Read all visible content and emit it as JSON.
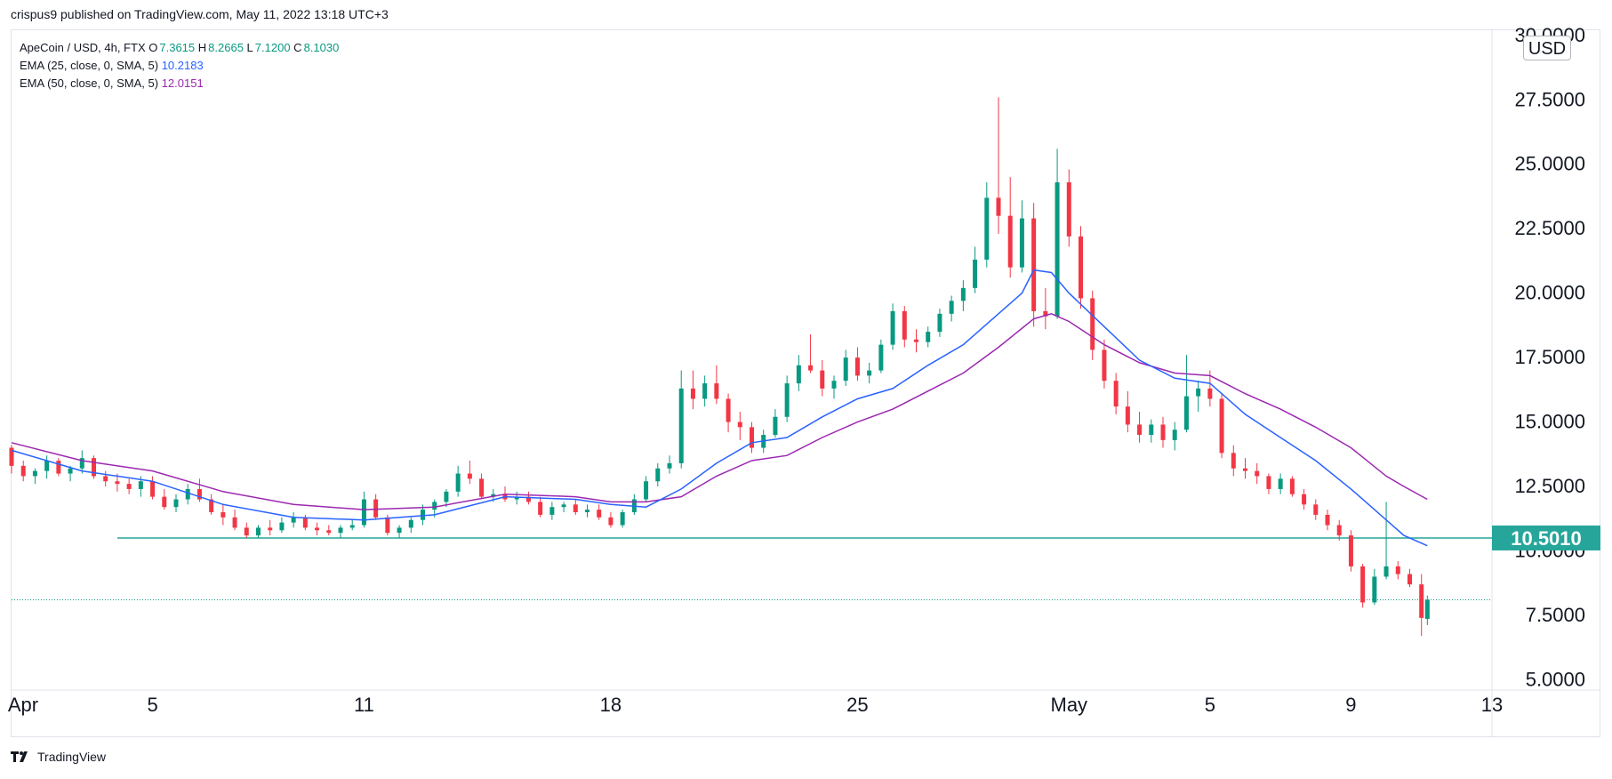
{
  "header": {
    "published_text": "crispus9 published on TradingView.com, May 11, 2022 13:18 UTC+3"
  },
  "legend": {
    "symbol": "ApeCoin / USD, 4h, FTX",
    "open_label": "O",
    "open_value": "7.3615",
    "high_label": "H",
    "high_value": "8.2665",
    "low_label": "L",
    "low_value": "7.1200",
    "close_label": "C",
    "close_value": "8.1030",
    "ema1_label": "EMA (25, close, 0, SMA, 5)",
    "ema1_value": "10.2183",
    "ema2_label": "EMA (50, close, 0, SMA, 5)",
    "ema2_value": "12.0151"
  },
  "footer": {
    "brand": "TradingView"
  },
  "colors": {
    "up": "#089981",
    "down": "#f23645",
    "ema25": "#2962ff",
    "ema50": "#9c27b0",
    "hline": "#26a69a",
    "grid": "#f0f3fa",
    "axis_text": "#131722"
  },
  "chart_data": {
    "type": "candlestick",
    "currency_label": "USD",
    "y_ticks": [
      "5.0000",
      "7.5000",
      "10.0000",
      "12.5000",
      "15.0000",
      "17.5000",
      "20.0000",
      "22.5000",
      "25.0000",
      "27.5000",
      "30.0000"
    ],
    "y_tick_values": [
      5,
      7.5,
      10,
      12.5,
      15,
      17.5,
      20,
      22.5,
      25,
      27.5,
      30
    ],
    "ylim": [
      4.6,
      30.2
    ],
    "x_ticks": [
      {
        "label": "Apr",
        "date": "2022-04-01"
      },
      {
        "label": "5",
        "date": "2022-04-05"
      },
      {
        "label": "11",
        "date": "2022-04-11"
      },
      {
        "label": "18",
        "date": "2022-04-18"
      },
      {
        "label": "25",
        "date": "2022-04-25"
      },
      {
        "label": "May",
        "date": "2022-05-01"
      },
      {
        "label": "5",
        "date": "2022-05-05"
      },
      {
        "label": "9",
        "date": "2022-05-09"
      },
      {
        "label": "13",
        "date": "2022-05-13"
      }
    ],
    "xlim": [
      "2022-04-01",
      "2022-05-13"
    ],
    "horizontal_line": {
      "value": 10.501,
      "label": "10.5010",
      "from_date": "2022-04-04"
    },
    "last_close": 8.103,
    "ema25": [
      [
        "2022-04-01",
        13.9
      ],
      [
        "2022-04-03",
        13.1
      ],
      [
        "2022-04-05",
        12.7
      ],
      [
        "2022-04-07",
        11.8
      ],
      [
        "2022-04-09",
        11.3
      ],
      [
        "2022-04-11",
        11.2
      ],
      [
        "2022-04-13",
        11.4
      ],
      [
        "2022-04-15",
        12.1
      ],
      [
        "2022-04-17",
        12.0
      ],
      [
        "2022-04-18",
        11.8
      ],
      [
        "2022-04-19",
        11.7
      ],
      [
        "2022-04-20",
        12.4
      ],
      [
        "2022-04-21",
        13.4
      ],
      [
        "2022-04-22",
        14.2
      ],
      [
        "2022-04-23",
        14.4
      ],
      [
        "2022-04-24",
        15.2
      ],
      [
        "2022-04-25",
        15.9
      ],
      [
        "2022-04-26",
        16.3
      ],
      [
        "2022-04-27",
        17.2
      ],
      [
        "2022-04-28",
        18.0
      ],
      [
        "2022-04-29",
        19.2
      ],
      [
        "2022-04-29T16",
        20.0
      ],
      [
        "2022-04-30",
        20.9
      ],
      [
        "2022-04-30T12",
        20.8
      ],
      [
        "2022-05-01",
        20.0
      ],
      [
        "2022-05-02",
        18.7
      ],
      [
        "2022-05-03",
        17.4
      ],
      [
        "2022-05-04",
        16.7
      ],
      [
        "2022-05-05",
        16.5
      ],
      [
        "2022-05-06",
        15.3
      ],
      [
        "2022-05-07",
        14.4
      ],
      [
        "2022-05-08",
        13.5
      ],
      [
        "2022-05-09",
        12.4
      ],
      [
        "2022-05-10",
        11.2
      ],
      [
        "2022-05-10T12",
        10.6
      ],
      [
        "2022-05-11T04",
        10.2
      ]
    ],
    "ema50": [
      [
        "2022-04-01",
        14.2
      ],
      [
        "2022-04-03",
        13.5
      ],
      [
        "2022-04-05",
        13.1
      ],
      [
        "2022-04-07",
        12.3
      ],
      [
        "2022-04-09",
        11.8
      ],
      [
        "2022-04-11",
        11.6
      ],
      [
        "2022-04-13",
        11.7
      ],
      [
        "2022-04-15",
        12.2
      ],
      [
        "2022-04-17",
        12.1
      ],
      [
        "2022-04-18",
        11.9
      ],
      [
        "2022-04-19",
        11.9
      ],
      [
        "2022-04-20",
        12.1
      ],
      [
        "2022-04-21",
        12.9
      ],
      [
        "2022-04-22",
        13.5
      ],
      [
        "2022-04-23",
        13.7
      ],
      [
        "2022-04-24",
        14.4
      ],
      [
        "2022-04-25",
        15.0
      ],
      [
        "2022-04-26",
        15.5
      ],
      [
        "2022-04-27",
        16.2
      ],
      [
        "2022-04-28",
        16.9
      ],
      [
        "2022-04-29",
        17.9
      ],
      [
        "2022-04-30",
        19.0
      ],
      [
        "2022-04-30T12",
        19.2
      ],
      [
        "2022-05-01",
        18.9
      ],
      [
        "2022-05-02",
        18.0
      ],
      [
        "2022-05-03",
        17.3
      ],
      [
        "2022-05-04",
        16.9
      ],
      [
        "2022-05-05",
        16.8
      ],
      [
        "2022-05-06",
        16.1
      ],
      [
        "2022-05-07",
        15.5
      ],
      [
        "2022-05-08",
        14.8
      ],
      [
        "2022-05-09",
        14.0
      ],
      [
        "2022-05-10",
        12.9
      ],
      [
        "2022-05-10T12",
        12.5
      ],
      [
        "2022-05-11T04",
        12.0
      ]
    ],
    "candles_ohlc": [
      [
        "2022-04-01T00",
        14.0,
        14.1,
        13.0,
        13.3
      ],
      [
        "2022-04-01T08",
        13.3,
        13.5,
        12.7,
        12.9
      ],
      [
        "2022-04-01T16",
        12.9,
        13.2,
        12.6,
        13.1
      ],
      [
        "2022-04-02T00",
        13.1,
        13.7,
        12.8,
        13.5
      ],
      [
        "2022-04-02T08",
        13.5,
        13.6,
        12.9,
        13.0
      ],
      [
        "2022-04-02T16",
        13.0,
        13.3,
        12.7,
        13.2
      ],
      [
        "2022-04-03T00",
        13.2,
        13.9,
        13.0,
        13.6
      ],
      [
        "2022-04-03T08",
        13.6,
        13.7,
        12.8,
        12.9
      ],
      [
        "2022-04-03T16",
        12.9,
        13.1,
        12.5,
        12.7
      ],
      [
        "2022-04-04T00",
        12.7,
        13.0,
        12.3,
        12.6
      ],
      [
        "2022-04-04T08",
        12.6,
        12.8,
        12.2,
        12.4
      ],
      [
        "2022-04-04T16",
        12.4,
        12.9,
        12.1,
        12.7
      ],
      [
        "2022-04-05T00",
        12.7,
        12.9,
        12.0,
        12.1
      ],
      [
        "2022-04-05T08",
        12.1,
        12.4,
        11.6,
        11.7
      ],
      [
        "2022-04-05T16",
        11.7,
        12.2,
        11.5,
        12.0
      ],
      [
        "2022-04-06T00",
        12.0,
        12.6,
        11.8,
        12.4
      ],
      [
        "2022-04-06T08",
        12.4,
        12.8,
        11.9,
        12.0
      ],
      [
        "2022-04-06T16",
        12.0,
        12.2,
        11.4,
        11.5
      ],
      [
        "2022-04-07T00",
        11.5,
        11.8,
        11.0,
        11.3
      ],
      [
        "2022-04-07T08",
        11.3,
        11.6,
        10.8,
        10.9
      ],
      [
        "2022-04-07T16",
        10.9,
        11.1,
        10.5,
        10.6
      ],
      [
        "2022-04-08T00",
        10.6,
        11.0,
        10.5,
        10.9
      ],
      [
        "2022-04-08T08",
        10.9,
        11.2,
        10.6,
        10.8
      ],
      [
        "2022-04-08T16",
        10.8,
        11.3,
        10.7,
        11.1
      ],
      [
        "2022-04-09T00",
        11.1,
        11.5,
        10.9,
        11.3
      ],
      [
        "2022-04-09T08",
        11.3,
        11.4,
        10.8,
        10.9
      ],
      [
        "2022-04-09T16",
        10.9,
        11.1,
        10.6,
        10.8
      ],
      [
        "2022-04-10T00",
        10.8,
        11.0,
        10.6,
        10.7
      ],
      [
        "2022-04-10T08",
        10.7,
        11.0,
        10.5,
        10.9
      ],
      [
        "2022-04-10T16",
        10.9,
        11.2,
        10.8,
        11.0
      ],
      [
        "2022-04-11T00",
        11.0,
        12.3,
        10.9,
        12.0
      ],
      [
        "2022-04-11T08",
        12.0,
        12.2,
        11.2,
        11.3
      ],
      [
        "2022-04-11T16",
        11.3,
        11.4,
        10.6,
        10.7
      ],
      [
        "2022-04-12T00",
        10.7,
        11.0,
        10.5,
        10.9
      ],
      [
        "2022-04-12T08",
        10.9,
        11.3,
        10.7,
        11.2
      ],
      [
        "2022-04-12T16",
        11.2,
        11.8,
        11.0,
        11.6
      ],
      [
        "2022-04-13T00",
        11.6,
        12.0,
        11.3,
        11.9
      ],
      [
        "2022-04-13T08",
        11.9,
        12.4,
        11.7,
        12.3
      ],
      [
        "2022-04-13T16",
        12.3,
        13.3,
        12.1,
        13.0
      ],
      [
        "2022-04-14T00",
        13.0,
        13.5,
        12.6,
        12.8
      ],
      [
        "2022-04-14T08",
        12.8,
        13.0,
        12.0,
        12.1
      ],
      [
        "2022-04-14T16",
        12.1,
        12.4,
        11.9,
        12.2
      ],
      [
        "2022-04-15T00",
        12.2,
        12.5,
        11.9,
        12.0
      ],
      [
        "2022-04-15T08",
        12.0,
        12.3,
        11.8,
        12.1
      ],
      [
        "2022-04-15T16",
        12.1,
        12.3,
        11.8,
        11.9
      ],
      [
        "2022-04-16T00",
        11.9,
        12.1,
        11.3,
        11.4
      ],
      [
        "2022-04-16T08",
        11.4,
        11.9,
        11.2,
        11.7
      ],
      [
        "2022-04-16T16",
        11.7,
        11.9,
        11.5,
        11.8
      ],
      [
        "2022-04-17T00",
        11.8,
        12.0,
        11.4,
        11.5
      ],
      [
        "2022-04-17T08",
        11.5,
        11.8,
        11.3,
        11.6
      ],
      [
        "2022-04-17T16",
        11.6,
        11.8,
        11.2,
        11.3
      ],
      [
        "2022-04-18T00",
        11.3,
        11.5,
        10.9,
        11.0
      ],
      [
        "2022-04-18T08",
        11.0,
        11.6,
        10.9,
        11.5
      ],
      [
        "2022-04-18T16",
        11.5,
        12.2,
        11.4,
        12.0
      ],
      [
        "2022-04-19T00",
        12.0,
        12.9,
        11.9,
        12.7
      ],
      [
        "2022-04-19T08",
        12.7,
        13.4,
        12.5,
        13.2
      ],
      [
        "2022-04-19T16",
        13.2,
        13.7,
        13.0,
        13.4
      ],
      [
        "2022-04-20T00",
        13.4,
        17.0,
        13.2,
        16.3
      ],
      [
        "2022-04-20T08",
        16.3,
        17.0,
        15.5,
        15.9
      ],
      [
        "2022-04-20T16",
        15.9,
        16.8,
        15.6,
        16.5
      ],
      [
        "2022-04-21T00",
        16.5,
        17.2,
        15.7,
        15.9
      ],
      [
        "2022-04-21T08",
        15.9,
        16.1,
        14.6,
        15.0
      ],
      [
        "2022-04-21T16",
        15.0,
        15.4,
        14.3,
        14.8
      ],
      [
        "2022-04-22T00",
        14.8,
        15.0,
        13.8,
        14.0
      ],
      [
        "2022-04-22T08",
        14.0,
        14.7,
        13.8,
        14.5
      ],
      [
        "2022-04-22T16",
        14.5,
        15.5,
        14.4,
        15.2
      ],
      [
        "2022-04-23T00",
        15.2,
        16.8,
        15.0,
        16.5
      ],
      [
        "2022-04-23T08",
        16.5,
        17.6,
        16.2,
        17.2
      ],
      [
        "2022-04-23T16",
        17.2,
        18.4,
        16.9,
        17.0
      ],
      [
        "2022-04-24T00",
        17.0,
        17.4,
        16.0,
        16.3
      ],
      [
        "2022-04-24T08",
        16.3,
        16.8,
        15.9,
        16.6
      ],
      [
        "2022-04-24T16",
        16.6,
        17.8,
        16.4,
        17.5
      ],
      [
        "2022-04-25T00",
        17.5,
        17.9,
        16.6,
        16.8
      ],
      [
        "2022-04-25T08",
        16.8,
        17.3,
        16.5,
        17.0
      ],
      [
        "2022-04-25T16",
        17.0,
        18.2,
        16.9,
        18.0
      ],
      [
        "2022-04-26T00",
        18.0,
        19.6,
        17.8,
        19.3
      ],
      [
        "2022-04-26T08",
        19.3,
        19.5,
        17.9,
        18.2
      ],
      [
        "2022-04-26T16",
        18.2,
        18.6,
        17.7,
        18.1
      ],
      [
        "2022-04-27T00",
        18.1,
        18.7,
        17.9,
        18.5
      ],
      [
        "2022-04-27T08",
        18.5,
        19.4,
        18.3,
        19.2
      ],
      [
        "2022-04-27T16",
        19.2,
        19.9,
        18.9,
        19.7
      ],
      [
        "2022-04-28T00",
        19.7,
        20.5,
        19.3,
        20.2
      ],
      [
        "2022-04-28T08",
        20.2,
        21.8,
        20.0,
        21.3
      ],
      [
        "2022-04-28T16",
        21.3,
        24.3,
        21.0,
        23.7
      ],
      [
        "2022-04-29T00",
        23.7,
        27.6,
        22.3,
        23.0
      ],
      [
        "2022-04-29T08",
        23.0,
        24.5,
        20.6,
        21.0
      ],
      [
        "2022-04-29T16",
        21.0,
        23.6,
        20.8,
        22.9
      ],
      [
        "2022-04-30T00",
        22.9,
        23.5,
        18.7,
        19.3
      ],
      [
        "2022-04-30T08",
        19.3,
        20.2,
        18.6,
        19.1
      ],
      [
        "2022-04-30T16",
        19.1,
        25.6,
        19.0,
        24.3
      ],
      [
        "2022-05-01T00",
        24.3,
        24.8,
        21.8,
        22.2
      ],
      [
        "2022-05-01T08",
        22.2,
        22.6,
        19.4,
        19.8
      ],
      [
        "2022-05-01T16",
        19.8,
        20.1,
        17.4,
        17.8
      ],
      [
        "2022-05-02T00",
        17.8,
        18.2,
        16.3,
        16.6
      ],
      [
        "2022-05-02T08",
        16.6,
        16.9,
        15.3,
        15.6
      ],
      [
        "2022-05-02T16",
        15.6,
        16.2,
        14.6,
        14.9
      ],
      [
        "2022-05-03T00",
        14.9,
        15.4,
        14.2,
        14.5
      ],
      [
        "2022-05-03T08",
        14.5,
        15.1,
        14.2,
        14.9
      ],
      [
        "2022-05-03T16",
        14.9,
        15.2,
        14.0,
        14.3
      ],
      [
        "2022-05-04T00",
        14.3,
        15.0,
        13.9,
        14.7
      ],
      [
        "2022-05-04T08",
        14.7,
        17.6,
        14.6,
        16.0
      ],
      [
        "2022-05-04T16",
        16.0,
        16.6,
        15.4,
        16.3
      ],
      [
        "2022-05-05T00",
        16.3,
        17.0,
        15.6,
        15.9
      ],
      [
        "2022-05-05T08",
        15.9,
        16.1,
        13.6,
        13.8
      ],
      [
        "2022-05-05T16",
        13.8,
        14.1,
        12.9,
        13.2
      ],
      [
        "2022-05-06T00",
        13.2,
        13.6,
        12.8,
        13.1
      ],
      [
        "2022-05-06T08",
        13.1,
        13.4,
        12.6,
        12.9
      ],
      [
        "2022-05-06T16",
        12.9,
        13.0,
        12.2,
        12.4
      ],
      [
        "2022-05-07T00",
        12.4,
        13.0,
        12.2,
        12.8
      ],
      [
        "2022-05-07T08",
        12.8,
        12.9,
        12.1,
        12.2
      ],
      [
        "2022-05-07T16",
        12.2,
        12.4,
        11.6,
        11.8
      ],
      [
        "2022-05-08T00",
        11.8,
        12.0,
        11.2,
        11.4
      ],
      [
        "2022-05-08T08",
        11.4,
        11.6,
        10.8,
        11.0
      ],
      [
        "2022-05-08T16",
        11.0,
        11.2,
        10.4,
        10.6
      ],
      [
        "2022-05-09T00",
        10.6,
        10.8,
        9.2,
        9.4
      ],
      [
        "2022-05-09T08",
        9.4,
        9.5,
        7.8,
        8.0
      ],
      [
        "2022-05-09T16",
        8.0,
        9.3,
        7.9,
        9.0
      ],
      [
        "2022-05-10T00",
        9.0,
        11.9,
        8.9,
        9.4
      ],
      [
        "2022-05-10T08",
        9.4,
        9.6,
        8.9,
        9.1
      ],
      [
        "2022-05-10T16",
        9.1,
        9.3,
        8.6,
        8.7
      ],
      [
        "2022-05-11T00",
        8.7,
        9.1,
        6.7,
        7.4
      ],
      [
        "2022-05-11T04",
        7.3615,
        8.2665,
        7.12,
        8.103
      ]
    ]
  }
}
